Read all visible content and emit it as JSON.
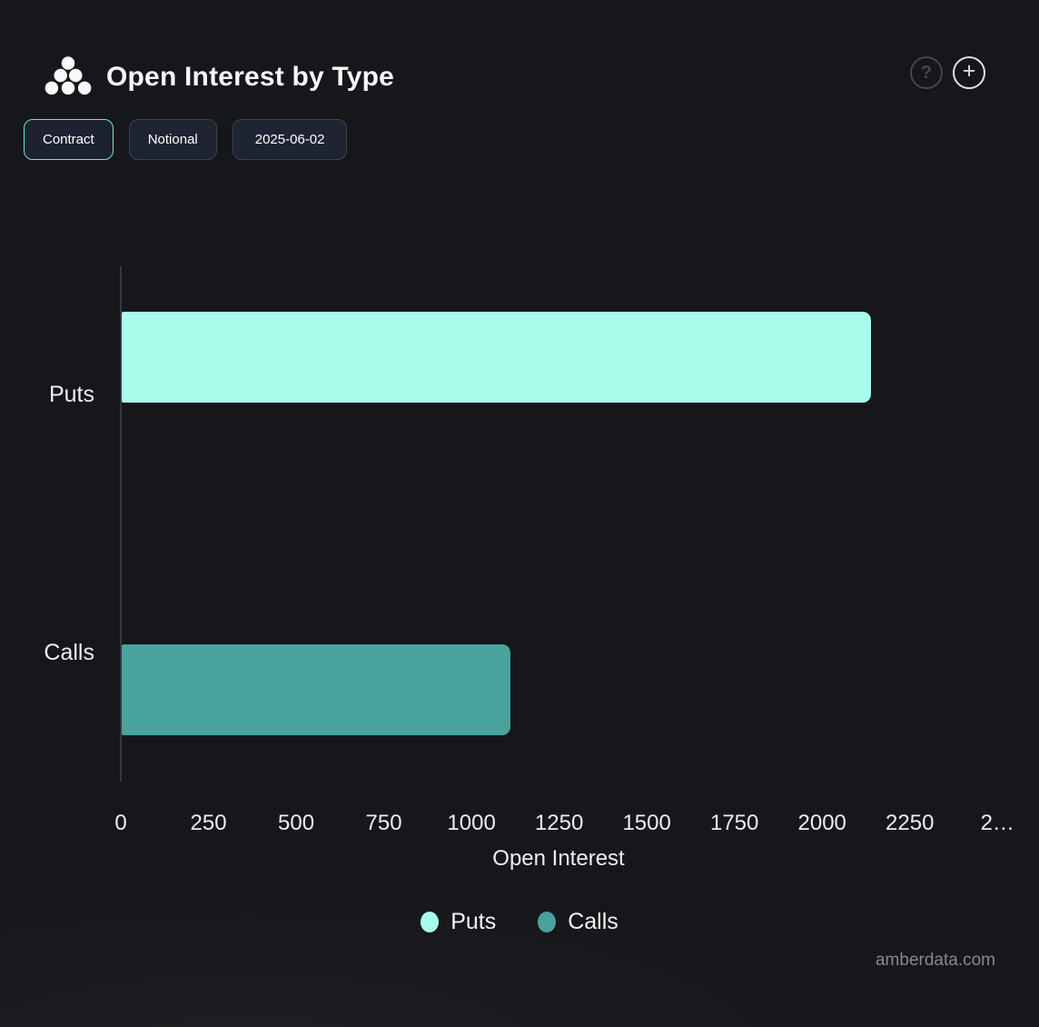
{
  "header": {
    "title": "Open Interest by Type",
    "help_icon": "?",
    "add_icon": "+"
  },
  "toolbar": {
    "buttons": [
      {
        "label": "Contract",
        "active": true
      },
      {
        "label": "Notional",
        "active": false
      },
      {
        "label": "2025-06-02",
        "active": false
      }
    ]
  },
  "chart_data": {
    "type": "bar",
    "orientation": "horizontal",
    "categories": [
      "Puts",
      "Calls"
    ],
    "series": [
      {
        "name": "Puts",
        "color": "#a9fbec",
        "values": [
          2140,
          null
        ]
      },
      {
        "name": "Calls",
        "color": "#49a29c",
        "values": [
          null,
          1110
        ]
      }
    ],
    "xlabel": "Open Interest",
    "xlim": [
      0,
      2590
    ],
    "x_ticks": [
      {
        "value": 0,
        "label": "0"
      },
      {
        "value": 250,
        "label": "250"
      },
      {
        "value": 500,
        "label": "500"
      },
      {
        "value": 750,
        "label": "750"
      },
      {
        "value": 1000,
        "label": "1000"
      },
      {
        "value": 1250,
        "label": "1250"
      },
      {
        "value": 1500,
        "label": "1500"
      },
      {
        "value": 1750,
        "label": "1750"
      },
      {
        "value": 2000,
        "label": "2000"
      },
      {
        "value": 2250,
        "label": "2250"
      },
      {
        "value": 2500,
        "label": "2…"
      }
    ],
    "legend": [
      {
        "label": "Puts",
        "color": "#a9fbec"
      },
      {
        "label": "Calls",
        "color": "#49a29c"
      }
    ],
    "legend_position": "bottom",
    "grid": false,
    "colors": {
      "background": "#15171a",
      "axis_line": "#34383e",
      "axis_text": "#eceef0",
      "accent_mint": "#a9fbec",
      "accent_teal": "#49a29c",
      "active_border": "#72e5d1"
    }
  },
  "footer": {
    "watermark": "amberdata.com"
  }
}
